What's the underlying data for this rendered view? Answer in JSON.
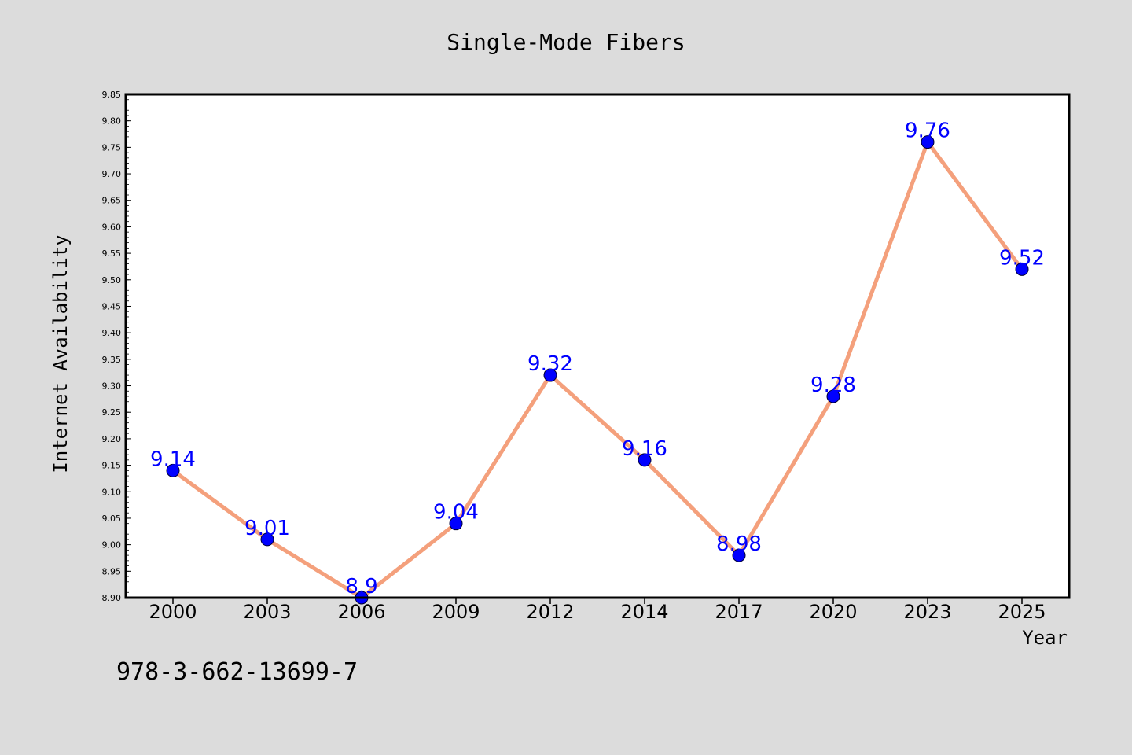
{
  "colors": {
    "background": "#dcdcdc",
    "plot_background": "#ffffff",
    "line": "#f4a07c",
    "marker": "#0000ff",
    "data_label": "#0000ff"
  },
  "footer_text": "978-3-662-13699-7",
  "chart_data": {
    "type": "line",
    "title": "Single-Mode Fibers",
    "xlabel": "Year",
    "ylabel": "Internet Availability",
    "categories": [
      "2000",
      "2003",
      "2006",
      "2009",
      "2012",
      "2014",
      "2017",
      "2020",
      "2023",
      "2025"
    ],
    "series": [
      {
        "values": [
          9.14,
          9.01,
          8.9,
          9.04,
          9.32,
          9.16,
          8.98,
          9.28,
          9.76,
          9.52
        ],
        "labels": [
          "9.14",
          "9.01",
          "8.9",
          "9.04",
          "9.32",
          "9.16",
          "8.98",
          "9.28",
          "9.76",
          "9.52"
        ]
      }
    ],
    "ylim": [
      8.9,
      9.85
    ],
    "yticks": [
      "8.90",
      "8.95",
      "9.00",
      "9.05",
      "9.10",
      "9.15",
      "9.20",
      "9.25",
      "9.30",
      "9.35",
      "9.40",
      "9.45",
      "9.50",
      "9.55",
      "9.60",
      "9.65",
      "9.70",
      "9.75",
      "9.80",
      "9.85"
    ],
    "grid": false,
    "legend": "none",
    "markers": true
  }
}
